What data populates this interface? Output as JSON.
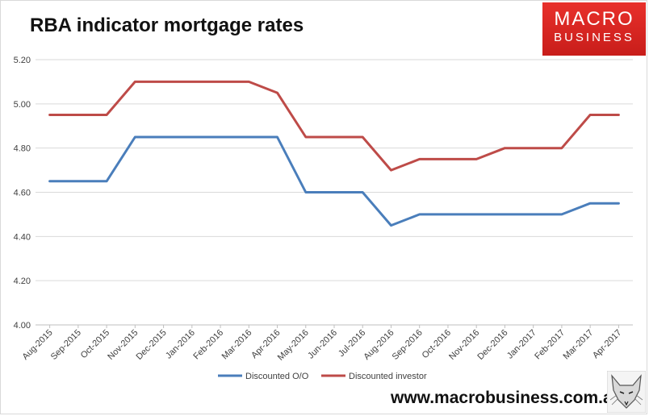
{
  "header": {
    "title": "RBA indicator mortgage rates"
  },
  "logo": {
    "line1": "MACRO",
    "line2": "BUSINESS",
    "color": "#d9221f"
  },
  "footer": {
    "website": "www.macrobusiness.com.au"
  },
  "chart_data": {
    "type": "line",
    "title": "RBA indicator mortgage rates",
    "xlabel": "",
    "ylabel": "",
    "categories": [
      "Aug-2015",
      "Sep-2015",
      "Oct-2015",
      "Nov-2015",
      "Dec-2015",
      "Jan-2016",
      "Feb-2016",
      "Mar-2016",
      "Apr-2016",
      "May-2016",
      "Jun-2016",
      "Jul-2016",
      "Aug-2016",
      "Sep-2016",
      "Oct-2016",
      "Nov-2016",
      "Dec-2016",
      "Jan-2017",
      "Feb-2017",
      "Mar-2017",
      "Apr-2017"
    ],
    "ylim": [
      4.0,
      5.2
    ],
    "yticks": [
      "4.00",
      "4.20",
      "4.40",
      "4.60",
      "4.80",
      "5.00",
      "5.20"
    ],
    "grid": true,
    "legend_position": "bottom",
    "series": [
      {
        "name": "Discounted O/O",
        "color": "#4a7ebb",
        "values": [
          4.65,
          4.65,
          4.65,
          4.85,
          4.85,
          4.85,
          4.85,
          4.85,
          4.85,
          4.6,
          4.6,
          4.6,
          4.45,
          4.5,
          4.5,
          4.5,
          4.5,
          4.5,
          4.5,
          4.55,
          4.55
        ]
      },
      {
        "name": "Discounted investor",
        "color": "#be4b48",
        "values": [
          4.95,
          4.95,
          4.95,
          5.1,
          5.1,
          5.1,
          5.1,
          5.1,
          5.05,
          4.85,
          4.85,
          4.85,
          4.7,
          4.75,
          4.75,
          4.75,
          4.8,
          4.8,
          4.8,
          4.95,
          4.95
        ]
      }
    ]
  }
}
